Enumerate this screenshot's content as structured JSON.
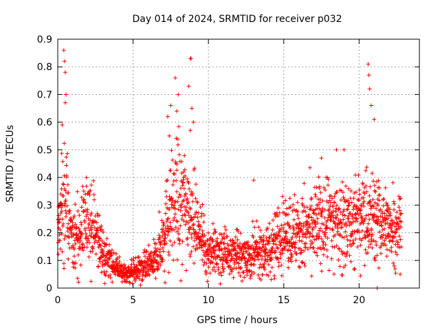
{
  "chart_data": {
    "type": "scatter",
    "title": "Day 014 of 2024, SRMTID for receiver p032",
    "xlabel": "GPS time / hours",
    "ylabel": "SRMTID / TECUs",
    "xlim": [
      0,
      24
    ],
    "ylim": [
      0,
      0.9
    ],
    "grid": true,
    "marker": "+",
    "color": "#ff0000",
    "x_ticks": [
      0,
      5,
      10,
      15,
      20
    ],
    "x_tick_labels": [
      "0",
      "5",
      "10",
      "15",
      "20"
    ],
    "y_ticks": [
      0,
      0.1,
      0.2,
      0.3,
      0.4,
      0.5,
      0.6,
      0.7,
      0.8,
      0.9
    ],
    "y_tick_labels": [
      "0",
      "0.1",
      "0.2",
      "0.3",
      "0.4",
      "0.5",
      "0.6",
      "0.7",
      "0.8",
      "0.9"
    ],
    "envelope": {
      "description": "approximate typical SRMTID level vs GPS hour (centre of point cloud)",
      "x": [
        0.0,
        0.3,
        0.5,
        0.8,
        1.2,
        1.6,
        2.0,
        2.5,
        3.0,
        3.5,
        4.0,
        4.5,
        5.0,
        5.5,
        6.0,
        6.5,
        7.0,
        7.5,
        8.0,
        8.5,
        9.0,
        9.5,
        10.0,
        11.0,
        12.0,
        13.0,
        14.0,
        15.0,
        16.0,
        17.0,
        18.0,
        19.0,
        20.0,
        21.0,
        22.0,
        22.8
      ],
      "y": [
        0.2,
        0.3,
        0.35,
        0.22,
        0.17,
        0.2,
        0.25,
        0.2,
        0.12,
        0.09,
        0.07,
        0.05,
        0.06,
        0.07,
        0.08,
        0.1,
        0.2,
        0.28,
        0.32,
        0.3,
        0.25,
        0.18,
        0.13,
        0.12,
        0.12,
        0.12,
        0.14,
        0.2,
        0.2,
        0.22,
        0.25,
        0.24,
        0.25,
        0.25,
        0.22,
        0.24
      ]
    },
    "outliers": {
      "x": [
        0.4,
        0.45,
        0.5,
        0.55,
        0.5,
        0.3,
        7.3,
        7.5,
        7.8,
        8.0,
        7.9,
        8.8,
        8.85,
        8.9,
        8.7,
        8.8,
        20.6,
        20.65,
        20.7,
        20.8,
        21.0,
        18.5,
        19.0,
        17.5,
        13.0,
        21.2,
        7.4,
        9.0
      ],
      "y": [
        0.86,
        0.82,
        0.78,
        0.7,
        0.67,
        0.59,
        0.62,
        0.66,
        0.76,
        0.7,
        0.64,
        0.83,
        0.83,
        0.65,
        0.73,
        0.57,
        0.81,
        0.77,
        0.72,
        0.66,
        0.61,
        0.5,
        0.5,
        0.47,
        0.39,
        0.0,
        0.55,
        0.6
      ]
    }
  }
}
